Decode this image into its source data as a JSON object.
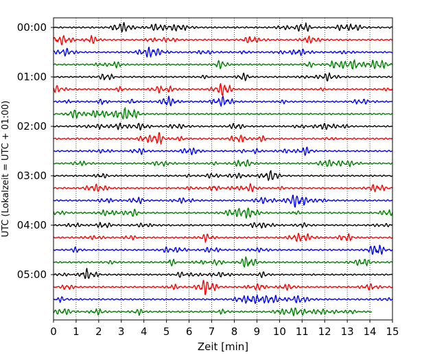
{
  "chart_data": {
    "type": "line",
    "title": "",
    "xlabel": "Zeit  [min]",
    "ylabel": "UTC (Lokalzeit = UTC + 01:00)",
    "xlim": [
      0,
      15
    ],
    "x_ticks": [
      "0",
      "1",
      "2",
      "3",
      "4",
      "5",
      "6",
      "7",
      "8",
      "9",
      "10",
      "11",
      "12",
      "13",
      "14",
      "15"
    ],
    "y_ticks": [
      "00:00",
      "01:00",
      "02:00",
      "03:00",
      "04:00",
      "05:00"
    ],
    "traces_per_hour": 4,
    "minutes_per_trace": 15,
    "trace_colors": [
      "#000000",
      "#ff0000",
      "#0000ff",
      "#008000"
    ],
    "trace_count": 24,
    "last_trace_end_minute": 14.1,
    "grid": "vertical dotted lines at each minute"
  }
}
